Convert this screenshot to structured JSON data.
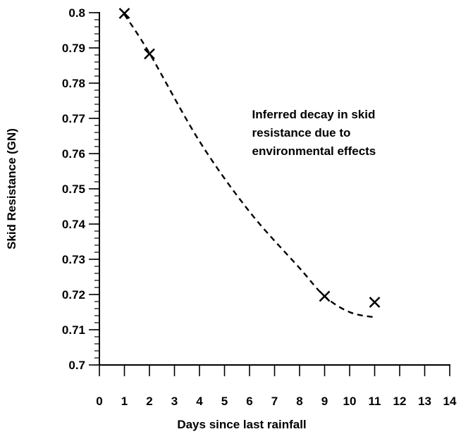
{
  "chart_data": {
    "type": "scatter",
    "title": "",
    "xlabel": "Days since last rainfall",
    "ylabel": "Skid Resistance (GN)",
    "xlim": [
      0,
      14
    ],
    "ylim": [
      0.7,
      0.8
    ],
    "x_ticks": [
      0,
      1,
      2,
      3,
      4,
      5,
      6,
      7,
      8,
      9,
      10,
      11,
      12,
      13,
      14
    ],
    "y_ticks": [
      0.7,
      0.71,
      0.72,
      0.73,
      0.74,
      0.75,
      0.76,
      0.77,
      0.78,
      0.79,
      0.8
    ],
    "y_minor_step": 0.002,
    "grid": false,
    "series": [
      {
        "marker": "x",
        "x": [
          1,
          2,
          9,
          11
        ],
        "y": [
          0.7998,
          0.7883,
          0.7195,
          0.7178
        ]
      }
    ],
    "trend_line": {
      "style": "dashed",
      "x": [
        1,
        2,
        4,
        6,
        8,
        9,
        10,
        11
      ],
      "y": [
        0.7995,
        0.7885,
        0.7635,
        0.7435,
        0.7275,
        0.7195,
        0.715,
        0.7135
      ]
    },
    "annotations": [
      {
        "lines": [
          "Inferred decay in skid",
          "resistance due to",
          "environmental effects"
        ],
        "x": 6.1,
        "y": 0.765
      }
    ]
  }
}
